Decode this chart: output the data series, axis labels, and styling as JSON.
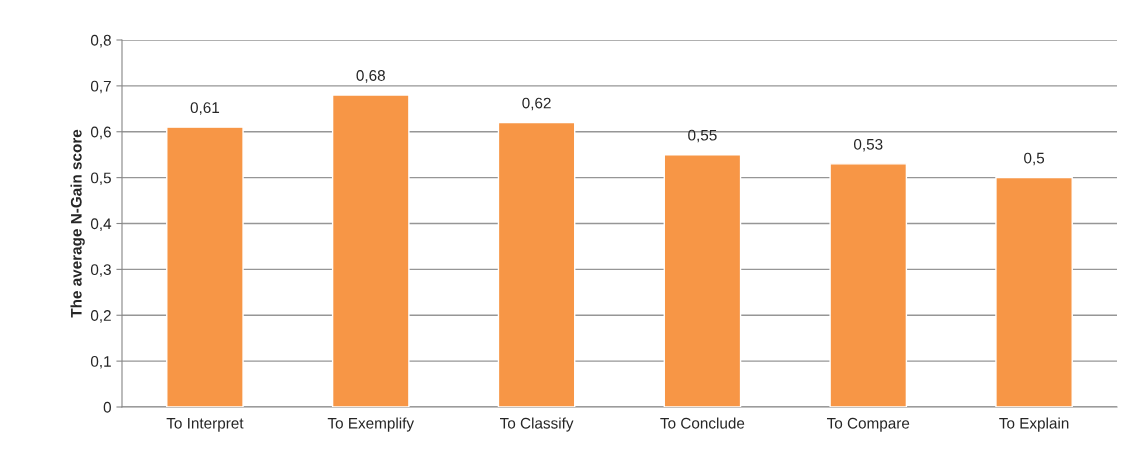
{
  "chart_data": {
    "type": "bar",
    "ylabel": "The average N-Gain score",
    "categories": [
      "To Interpret",
      "To Exemplify",
      "To Classify",
      "To Conclude",
      "To Compare",
      "To Explain"
    ],
    "values": [
      0.61,
      0.68,
      0.62,
      0.55,
      0.53,
      0.5
    ],
    "value_labels": [
      "0,61",
      "0,68",
      "0,62",
      "0,55",
      "0,53",
      "0,5"
    ],
    "color": "#f79646",
    "ylim": [
      0,
      0.8
    ],
    "yticks": [
      {
        "value": 0,
        "label": "0"
      },
      {
        "value": 0.1,
        "label": "0,1"
      },
      {
        "value": 0.2,
        "label": "0,2"
      },
      {
        "value": 0.3,
        "label": "0,3"
      },
      {
        "value": 0.4,
        "label": "0,4"
      },
      {
        "value": 0.5,
        "label": "0,5"
      },
      {
        "value": 0.6,
        "label": "0,6"
      },
      {
        "value": 0.7,
        "label": "0,7"
      },
      {
        "value": 0.8,
        "label": "0,8"
      }
    ],
    "grid": "y",
    "legend": false
  }
}
